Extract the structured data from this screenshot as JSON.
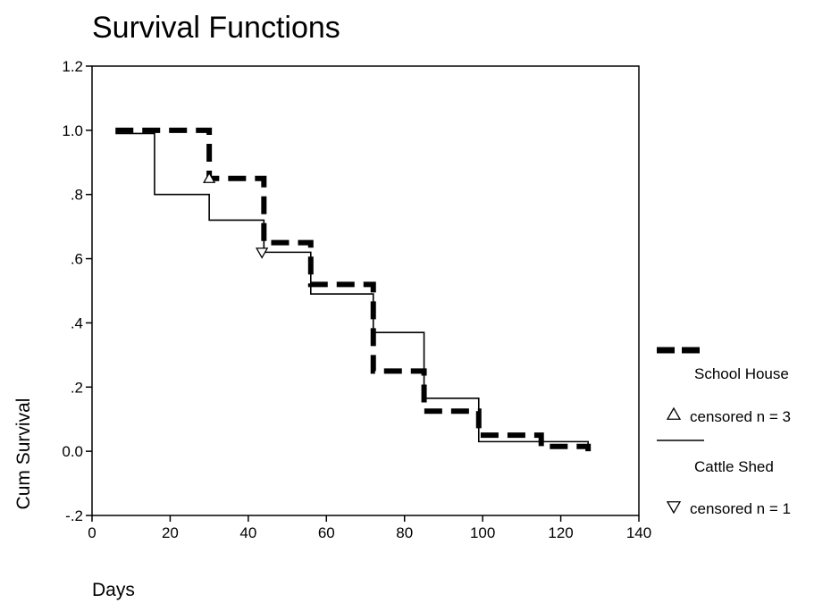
{
  "chart_data": {
    "type": "line",
    "title": "Survival Functions",
    "xlabel": "Days",
    "ylabel": "Cum Survival",
    "xlim": [
      0,
      140
    ],
    "ylim": [
      -0.2,
      1.2
    ],
    "xticks": [
      0,
      20,
      40,
      60,
      80,
      100,
      120,
      140
    ],
    "xtick_labels": [
      "0",
      "20",
      "40",
      "60",
      "80",
      "100",
      "120",
      "140"
    ],
    "yticks": [
      -0.2,
      0.0,
      0.2,
      0.4,
      0.6,
      0.8,
      1.0,
      1.2
    ],
    "ytick_labels": [
      "-.2",
      "0.0",
      ".2",
      ".4",
      ".6",
      ".8",
      "1.0",
      "1.2"
    ],
    "grid": false,
    "legend_position": "right",
    "series": [
      {
        "name": "School House",
        "step": true,
        "style": "dashed",
        "color": "#000000",
        "x": [
          6,
          30,
          44,
          56,
          72,
          85,
          99,
          115,
          127
        ],
        "y": [
          1.0,
          0.85,
          0.65,
          0.52,
          0.25,
          0.125,
          0.05,
          0.015,
          0.0
        ],
        "end_x": 127,
        "censored_marker": "triangle-up",
        "censored": [
          {
            "x": 30,
            "y": 0.85
          }
        ]
      },
      {
        "name": "Cattle Shed",
        "step": true,
        "style": "solid",
        "color": "#000000",
        "x": [
          6,
          16,
          30,
          44,
          56,
          72,
          85,
          99,
          127
        ],
        "y": [
          0.99,
          0.8,
          0.72,
          0.62,
          0.49,
          0.37,
          0.165,
          0.03,
          0.02
        ],
        "end_x": 127,
        "censored_marker": "triangle-down",
        "censored": [
          {
            "x": 43.5,
            "y": 0.62
          }
        ]
      }
    ],
    "legend": [
      {
        "label": "School House",
        "symbol": "dashed-line"
      },
      {
        "label": "censored n = 3",
        "symbol": "triangle-up"
      },
      {
        "label": "Cattle Shed",
        "symbol": "solid-line"
      },
      {
        "label": "censored n = 1",
        "symbol": "triangle-down"
      }
    ]
  }
}
